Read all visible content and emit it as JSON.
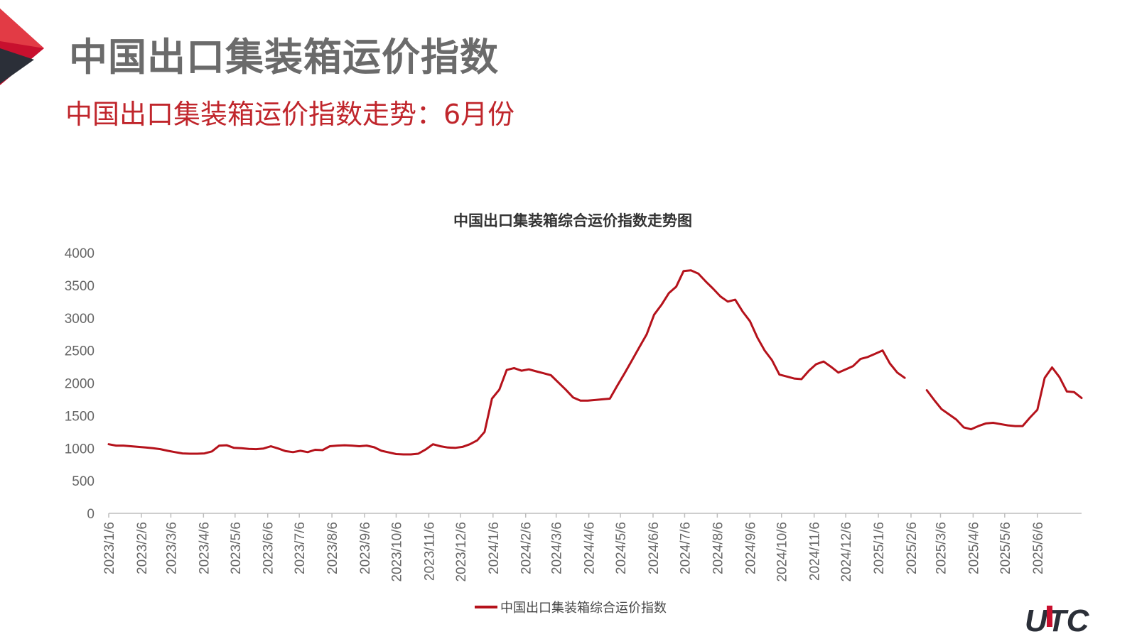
{
  "page": {
    "title": "中国出口集装箱运价指数",
    "subtitle": "中国出口集装箱运价指数走势：6月份",
    "logo_text": "UTC",
    "accent_color": "#c0262c"
  },
  "chart_data": {
    "type": "line",
    "title": "中国出口集装箱综合运价指数走势图",
    "xlabel": "",
    "ylabel": "",
    "ylim": [
      0,
      4000
    ],
    "yticks": [
      "0",
      "500",
      "1000",
      "1500",
      "2000",
      "2500",
      "3000",
      "3500",
      "4000"
    ],
    "categories": [
      "2023/1/6",
      "2023/2/6",
      "2023/3/6",
      "2023/4/6",
      "2023/5/6",
      "2023/6/6",
      "2023/7/6",
      "2023/8/6",
      "2023/9/6",
      "2023/10/6",
      "2023/11/6",
      "2023/12/6",
      "2024/1/6",
      "2024/2/6",
      "2024/3/6",
      "2024/4/6",
      "2024/5/6",
      "2024/6/6",
      "2024/7/6",
      "2024/8/6",
      "2024/9/6",
      "2024/10/6",
      "2024/11/6",
      "2024/12/6",
      "2025/1/6",
      "2025/2/6",
      "2025/3/6",
      "2025/4/6",
      "2025/5/6",
      "2025/6/6"
    ],
    "grid": false,
    "legend_position": "bottom",
    "series": [
      {
        "name": "中国出口集装箱综合运价指数",
        "color": "#b5121b",
        "points": [
          [
            "2023/1/6",
            1060
          ],
          [
            "2023/1/13",
            1040
          ],
          [
            "2023/1/20",
            1040
          ],
          [
            "2023/1/27",
            1030
          ],
          [
            "2023/2/3",
            1020
          ],
          [
            "2023/2/10",
            1010
          ],
          [
            "2023/2/17",
            1000
          ],
          [
            "2023/2/24",
            985
          ],
          [
            "2023/3/3",
            960
          ],
          [
            "2023/3/10",
            940
          ],
          [
            "2023/3/17",
            920
          ],
          [
            "2023/3/24",
            915
          ],
          [
            "2023/3/31",
            915
          ],
          [
            "2023/4/7",
            920
          ],
          [
            "2023/4/14",
            950
          ],
          [
            "2023/4/21",
            1040
          ],
          [
            "2023/4/28",
            1045
          ],
          [
            "2023/5/5",
            1005
          ],
          [
            "2023/5/12",
            1000
          ],
          [
            "2023/5/19",
            990
          ],
          [
            "2023/5/26",
            985
          ],
          [
            "2023/6/2",
            995
          ],
          [
            "2023/6/9",
            1030
          ],
          [
            "2023/6/16",
            995
          ],
          [
            "2023/6/23",
            955
          ],
          [
            "2023/6/30",
            940
          ],
          [
            "2023/7/7",
            960
          ],
          [
            "2023/7/14",
            940
          ],
          [
            "2023/7/21",
            975
          ],
          [
            "2023/7/28",
            970
          ],
          [
            "2023/8/4",
            1030
          ],
          [
            "2023/8/11",
            1040
          ],
          [
            "2023/8/18",
            1045
          ],
          [
            "2023/8/25",
            1040
          ],
          [
            "2023/9/1",
            1030
          ],
          [
            "2023/9/8",
            1040
          ],
          [
            "2023/9/15",
            1015
          ],
          [
            "2023/9/22",
            960
          ],
          [
            "2023/9/29",
            935
          ],
          [
            "2023/10/6",
            910
          ],
          [
            "2023/10/13",
            905
          ],
          [
            "2023/10/20",
            905
          ],
          [
            "2023/10/27",
            915
          ],
          [
            "2023/11/3",
            980
          ],
          [
            "2023/11/10",
            1060
          ],
          [
            "2023/11/17",
            1030
          ],
          [
            "2023/11/24",
            1010
          ],
          [
            "2023/12/1",
            1005
          ],
          [
            "2023/12/8",
            1020
          ],
          [
            "2023/12/15",
            1060
          ],
          [
            "2023/12/22",
            1120
          ],
          [
            "2023/12/29",
            1250
          ],
          [
            "2024/1/5",
            1760
          ],
          [
            "2024/1/12",
            1900
          ],
          [
            "2024/1/19",
            2200
          ],
          [
            "2024/1/26",
            2230
          ],
          [
            "2024/2/2",
            2190
          ],
          [
            "2024/2/9",
            2210
          ],
          [
            "2024/2/16",
            2180
          ],
          [
            "2024/2/23",
            2150
          ],
          [
            "2024/3/1",
            2120
          ],
          [
            "2024/3/8",
            2010
          ],
          [
            "2024/3/15",
            1900
          ],
          [
            "2024/3/22",
            1780
          ],
          [
            "2024/3/29",
            1730
          ],
          [
            "2024/4/5",
            1730
          ],
          [
            "2024/4/12",
            1740
          ],
          [
            "2024/4/19",
            1750
          ],
          [
            "2024/4/26",
            1760
          ],
          [
            "2024/5/3",
            1960
          ],
          [
            "2024/5/10",
            2150
          ],
          [
            "2024/5/17",
            2350
          ],
          [
            "2024/5/24",
            2550
          ],
          [
            "2024/5/31",
            2750
          ],
          [
            "2024/6/7",
            3050
          ],
          [
            "2024/6/14",
            3200
          ],
          [
            "2024/6/21",
            3380
          ],
          [
            "2024/6/28",
            3480
          ],
          [
            "2024/7/5",
            3720
          ],
          [
            "2024/7/12",
            3730
          ],
          [
            "2024/7/19",
            3680
          ],
          [
            "2024/7/26",
            3560
          ],
          [
            "2024/8/2",
            3450
          ],
          [
            "2024/8/9",
            3330
          ],
          [
            "2024/8/16",
            3250
          ],
          [
            "2024/8/23",
            3280
          ],
          [
            "2024/8/30",
            3100
          ],
          [
            "2024/9/6",
            2950
          ],
          [
            "2024/9/13",
            2700
          ],
          [
            "2024/9/20",
            2500
          ],
          [
            "2024/9/27",
            2350
          ],
          [
            "2024/10/4",
            2130
          ],
          [
            "2024/10/11",
            2100
          ],
          [
            "2024/10/18",
            2070
          ],
          [
            "2024/10/25",
            2060
          ],
          [
            "2024/11/1",
            2190
          ],
          [
            "2024/11/8",
            2290
          ],
          [
            "2024/11/15",
            2330
          ],
          [
            "2024/11/22",
            2250
          ],
          [
            "2024/11/29",
            2160
          ],
          [
            "2024/12/6",
            2210
          ],
          [
            "2024/12/13",
            2260
          ],
          [
            "2024/12/20",
            2370
          ],
          [
            "2024/12/27",
            2400
          ],
          [
            "2025/1/3",
            2450
          ],
          [
            "2025/1/10",
            2500
          ],
          [
            "2025/1/17",
            2300
          ],
          [
            "2025/1/24",
            2160
          ],
          [
            "2025/1/31",
            2080
          ],
          [
            "2025/2/7",
            null
          ],
          [
            "2025/2/14",
            null
          ],
          [
            "2025/2/21",
            1890
          ],
          [
            "2025/2/28",
            1740
          ],
          [
            "2025/3/7",
            1600
          ],
          [
            "2025/3/14",
            1520
          ],
          [
            "2025/3/21",
            1440
          ],
          [
            "2025/3/28",
            1320
          ],
          [
            "2025/4/4",
            1290
          ],
          [
            "2025/4/11",
            1340
          ],
          [
            "2025/4/18",
            1380
          ],
          [
            "2025/4/25",
            1390
          ],
          [
            "2025/5/2",
            1370
          ],
          [
            "2025/5/9",
            1350
          ],
          [
            "2025/5/16",
            1340
          ],
          [
            "2025/5/23",
            1340
          ],
          [
            "2025/5/30",
            1470
          ],
          [
            "2025/6/6",
            1590
          ],
          [
            "2025/6/13",
            2080
          ],
          [
            "2025/6/20",
            2240
          ],
          [
            "2025/6/27",
            2090
          ],
          [
            "2025/7/4",
            1870
          ],
          [
            "2025/7/11",
            1860
          ],
          [
            "2025/7/18",
            1770
          ]
        ]
      }
    ]
  }
}
